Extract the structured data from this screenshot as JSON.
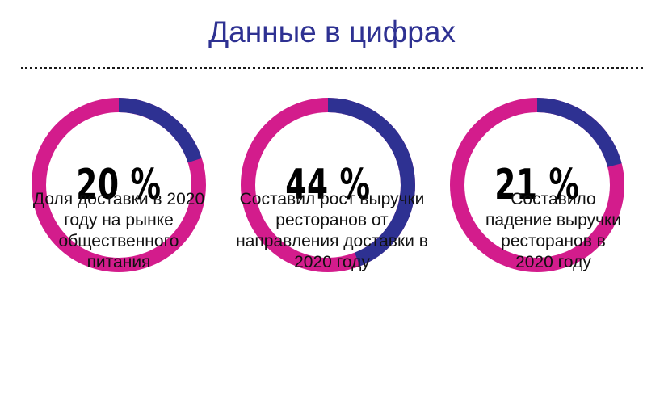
{
  "header": {
    "title": "Данные в цифрах"
  },
  "colors": {
    "track": "#d31c8c",
    "value": "#2e3192",
    "title": "#2e3192"
  },
  "chart_data": [
    {
      "type": "pie",
      "values": [
        20,
        80
      ],
      "label": "20 %",
      "caption": "Доля доставки в 2020 году на рынке общественного питания"
    },
    {
      "type": "pie",
      "values": [
        44,
        56
      ],
      "label": "44 %",
      "caption": "Составил рост выручки ресторанов от направления доставки в 2020 году"
    },
    {
      "type": "pie",
      "values": [
        21,
        79
      ],
      "label": "21 %",
      "caption": "Составило падение выручки ресторанов в 2020 году"
    }
  ]
}
